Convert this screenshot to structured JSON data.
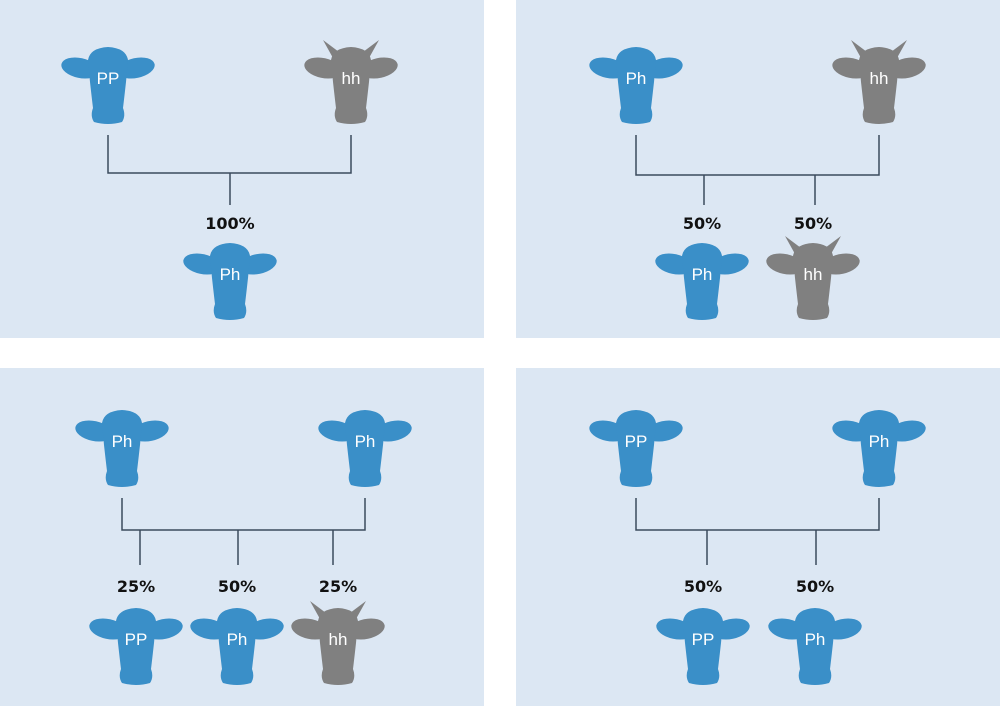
{
  "colors": {
    "panel_bg": "#dce7f3",
    "polled": "#3a8fc8",
    "horned": "#808080",
    "line": "#3b4b5c",
    "percent_text": "#111111"
  },
  "panels": [
    {
      "parents": [
        {
          "genotype": "PP",
          "horned": false
        },
        {
          "genotype": "hh",
          "horned": true
        }
      ],
      "offspring": [
        {
          "percent": "100%",
          "genotype": "Ph",
          "horned": false
        }
      ]
    },
    {
      "parents": [
        {
          "genotype": "Ph",
          "horned": false
        },
        {
          "genotype": "hh",
          "horned": true
        }
      ],
      "offspring": [
        {
          "percent": "50%",
          "genotype": "Ph",
          "horned": false
        },
        {
          "percent": "50%",
          "genotype": "hh",
          "horned": true
        }
      ]
    },
    {
      "parents": [
        {
          "genotype": "Ph",
          "horned": false
        },
        {
          "genotype": "Ph",
          "horned": false
        }
      ],
      "offspring": [
        {
          "percent": "25%",
          "genotype": "PP",
          "horned": false
        },
        {
          "percent": "50%",
          "genotype": "Ph",
          "horned": false
        },
        {
          "percent": "25%",
          "genotype": "hh",
          "horned": true
        }
      ]
    },
    {
      "parents": [
        {
          "genotype": "PP",
          "horned": false
        },
        {
          "genotype": "Ph",
          "horned": false
        }
      ],
      "offspring": [
        {
          "percent": "50%",
          "genotype": "PP",
          "horned": false
        },
        {
          "percent": "50%",
          "genotype": "Ph",
          "horned": false
        }
      ]
    }
  ]
}
